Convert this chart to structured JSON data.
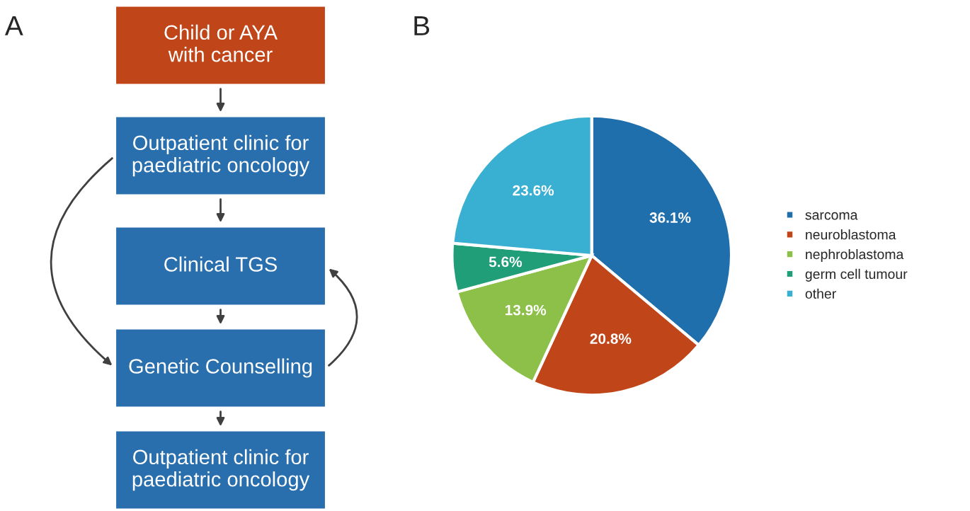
{
  "chart_data": [
    {
      "type": "other",
      "title": "A",
      "annotations": [
        "Child or AYA\nwith cancer",
        "Outpatient clinic for\npaediatric oncology",
        "Clinical TGS",
        "Genetic Counselling",
        "Outpatient clinic for\npaediatric oncology"
      ],
      "colors": [
        "#c0461a",
        "#2a6fad",
        "#2a6fad",
        "#2a6fad",
        "#2a6fad"
      ]
    },
    {
      "type": "pie",
      "title": "B",
      "categories": [
        "sarcoma",
        "neuroblastoma",
        "nephroblastoma",
        "germ cell tumour",
        "other"
      ],
      "values": [
        36.1,
        20.8,
        13.9,
        5.6,
        23.6
      ],
      "value_labels": [
        "36.1%",
        "20.8%",
        "13.9%",
        "5.6%",
        "23.6%"
      ],
      "colors": [
        "#206fad",
        "#c0461a",
        "#8cc048",
        "#1f9e78",
        "#39afd1"
      ],
      "legend": "right"
    }
  ]
}
